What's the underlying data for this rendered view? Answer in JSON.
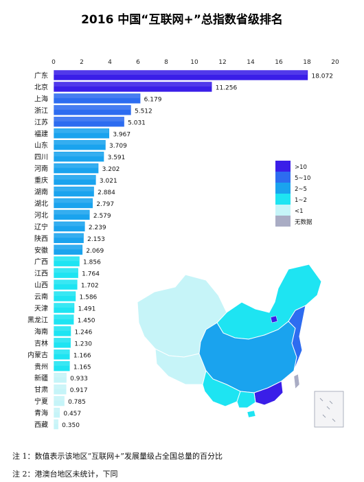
{
  "title": "2016 中国“互联网+”总指数省级排名",
  "chart_data": {
    "type": "bar",
    "orientation": "horizontal",
    "title": "2016 中国“互联网+”总指数省级排名",
    "xlim": [
      0,
      20
    ],
    "xticks": [
      0,
      2,
      4,
      6,
      8,
      10,
      12,
      14,
      16,
      18,
      20
    ],
    "categories": [
      "广东",
      "北京",
      "上海",
      "浙江",
      "江苏",
      "福建",
      "山东",
      "四川",
      "河南",
      "重庆",
      "湖南",
      "湖北",
      "河北",
      "辽宁",
      "陕西",
      "安徽",
      "广西",
      "江西",
      "山西",
      "云南",
      "天津",
      "黑龙江",
      "海南",
      "吉林",
      "内蒙古",
      "贵州",
      "新疆",
      "甘肃",
      "宁夏",
      "青海",
      "西藏"
    ],
    "values": [
      18.072,
      11.256,
      6.179,
      5.512,
      5.031,
      3.967,
      3.709,
      3.591,
      3.202,
      3.021,
      2.884,
      2.797,
      2.579,
      2.239,
      2.153,
      2.069,
      1.856,
      1.764,
      1.702,
      1.586,
      1.491,
      1.45,
      1.246,
      1.23,
      1.166,
      1.165,
      0.933,
      0.917,
      0.785,
      0.457,
      0.35
    ],
    "value_labels": [
      "18.072",
      "11.256",
      "6.179",
      "5.512",
      "5.031",
      "3.967",
      "3.709",
      "3.591",
      "3.202",
      "3.021",
      "2.884",
      "2.797",
      "2.579",
      "2.239",
      "2.153",
      "2.069",
      "1.856",
      "1.764",
      "1.702",
      "1.586",
      "1.491",
      "1.450",
      "1.246",
      "1.230",
      "1.166",
      "1.165",
      "0.933",
      "0.917",
      "0.785",
      "0.457",
      "0.350"
    ],
    "legend": {
      "placement": "right",
      "items": [
        {
          "label": ">10",
          "color": "#3a1ee8"
        },
        {
          "label": "5~10",
          "color": "#2d6cf0"
        },
        {
          "label": "2~5",
          "color": "#1aa3ee"
        },
        {
          "label": "1~2",
          "color": "#1ee4f2"
        },
        {
          "label": "<1",
          "color": "#c6f4f8"
        },
        {
          "label": "无数据",
          "color": "#a9acc4"
        }
      ]
    },
    "grid": false
  },
  "notes": [
    "注 1：数值表示该地区“互联网+”发展量级占全国总量的百分比",
    "注 2：港澳台地区未统计，下同"
  ]
}
